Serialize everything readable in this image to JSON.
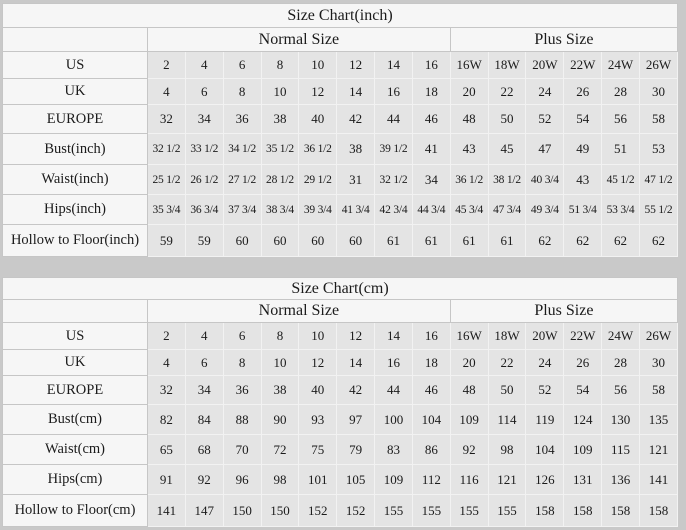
{
  "page_background": "#c9c9c9",
  "colors": {
    "panel_fill": "#f6f6f6",
    "data_cell_fill": "#e4e4e4",
    "grid_dark": "#c6c6c6",
    "grid_light": "#f2f2f2",
    "text": "#1b1b1b"
  },
  "chart_data": [
    {
      "type": "table",
      "title": "Size Chart(inch)",
      "column_groups": [
        {
          "label": "Normal Size",
          "span": 8
        },
        {
          "label": "Plus Size",
          "span": 6
        }
      ],
      "rows": [
        {
          "label": "US",
          "values": [
            "2",
            "4",
            "6",
            "8",
            "10",
            "12",
            "14",
            "16",
            "16W",
            "18W",
            "20W",
            "22W",
            "24W",
            "26W"
          ]
        },
        {
          "label": "UK",
          "values": [
            "4",
            "6",
            "8",
            "10",
            "12",
            "14",
            "16",
            "18",
            "20",
            "22",
            "24",
            "26",
            "28",
            "30"
          ]
        },
        {
          "label": "EUROPE",
          "values": [
            "32",
            "34",
            "36",
            "38",
            "40",
            "42",
            "44",
            "46",
            "48",
            "50",
            "52",
            "54",
            "56",
            "58"
          ]
        },
        {
          "label": "Bust(inch)",
          "values": [
            "32 1/2",
            "33 1/2",
            "34 1/2",
            "35 1/2",
            "36 1/2",
            "38",
            "39 1/2",
            "41",
            "43",
            "45",
            "47",
            "49",
            "51",
            "53"
          ]
        },
        {
          "label": "Waist(inch)",
          "values": [
            "25 1/2",
            "26 1/2",
            "27 1/2",
            "28 1/2",
            "29 1/2",
            "31",
            "32 1/2",
            "34",
            "36 1/2",
            "38 1/2",
            "40 3/4",
            "43",
            "45 1/2",
            "47 1/2"
          ]
        },
        {
          "label": "Hips(inch)",
          "values": [
            "35 3/4",
            "36 3/4",
            "37 3/4",
            "38 3/4",
            "39 3/4",
            "41 3/4",
            "42 3/4",
            "44 3/4",
            "45 3/4",
            "47 3/4",
            "49 3/4",
            "51 3/4",
            "53 3/4",
            "55 1/2"
          ]
        },
        {
          "label": "Hollow to Floor(inch)",
          "values": [
            "59",
            "59",
            "60",
            "60",
            "60",
            "60",
            "61",
            "61",
            "61",
            "61",
            "62",
            "62",
            "62",
            "62"
          ]
        }
      ]
    },
    {
      "type": "table",
      "title": "Size Chart(cm)",
      "column_groups": [
        {
          "label": "Normal Size",
          "span": 8
        },
        {
          "label": "Plus Size",
          "span": 6
        }
      ],
      "rows": [
        {
          "label": "US",
          "values": [
            "2",
            "4",
            "6",
            "8",
            "10",
            "12",
            "14",
            "16",
            "16W",
            "18W",
            "20W",
            "22W",
            "24W",
            "26W"
          ]
        },
        {
          "label": "UK",
          "values": [
            "4",
            "6",
            "8",
            "10",
            "12",
            "14",
            "16",
            "18",
            "20",
            "22",
            "24",
            "26",
            "28",
            "30"
          ]
        },
        {
          "label": "EUROPE",
          "values": [
            "32",
            "34",
            "36",
            "38",
            "40",
            "42",
            "44",
            "46",
            "48",
            "50",
            "52",
            "54",
            "56",
            "58"
          ]
        },
        {
          "label": "Bust(cm)",
          "values": [
            "82",
            "84",
            "88",
            "90",
            "93",
            "97",
            "100",
            "104",
            "109",
            "114",
            "119",
            "124",
            "130",
            "135"
          ]
        },
        {
          "label": "Waist(cm)",
          "values": [
            "65",
            "68",
            "70",
            "72",
            "75",
            "79",
            "83",
            "86",
            "92",
            "98",
            "104",
            "109",
            "115",
            "121"
          ]
        },
        {
          "label": "Hips(cm)",
          "values": [
            "91",
            "92",
            "96",
            "98",
            "101",
            "105",
            "109",
            "112",
            "116",
            "121",
            "126",
            "131",
            "136",
            "141"
          ]
        },
        {
          "label": "Hollow to Floor(cm)",
          "values": [
            "141",
            "147",
            "150",
            "150",
            "152",
            "152",
            "155",
            "155",
            "155",
            "155",
            "158",
            "158",
            "158",
            "158"
          ]
        }
      ]
    }
  ]
}
